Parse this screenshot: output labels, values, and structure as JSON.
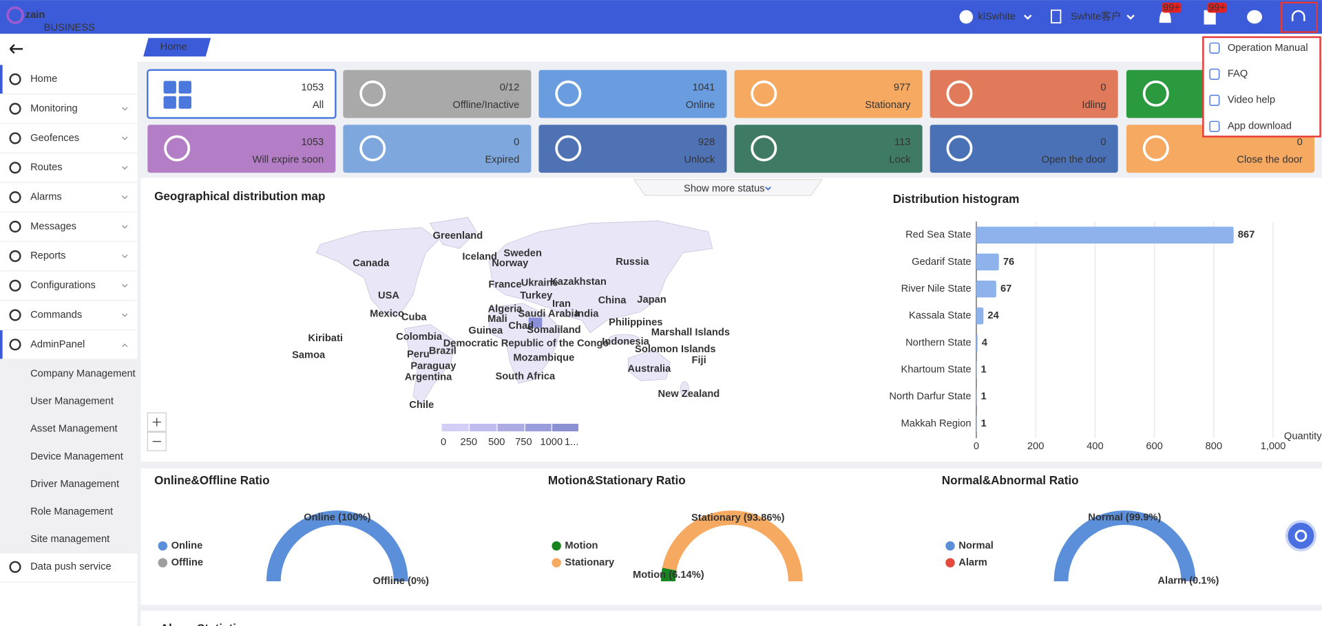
{
  "header": {
    "logo": "zain",
    "logo_sub": "BUSINESS",
    "user": "klSwhite",
    "account": "Swhite客户",
    "badges": [
      "99+",
      "99+"
    ]
  },
  "help_menu": [
    "Operation Manual",
    "FAQ",
    "Video help",
    "App download"
  ],
  "sidebar": {
    "menu": [
      "Home",
      "Monitoring",
      "Geofences",
      "Routes",
      "Alarms",
      "Messages",
      "Reports",
      "Configurations",
      "Commands",
      "AdminPanel"
    ],
    "submenu": [
      "Company Management",
      "User Management",
      "Asset Management",
      "Device Management",
      "Driver Management",
      "Role Management",
      "Site management"
    ],
    "extra": "Data push service"
  },
  "tab": "Home",
  "status_cards": [
    {
      "value": 1053,
      "label": "All",
      "color": "#ffffff"
    },
    {
      "value": "0/12",
      "label": "Offline/Inactive",
      "color": "#a9a9a9"
    },
    {
      "value": 1041,
      "label": "Online",
      "color": "#6a9ce0"
    },
    {
      "value": 977,
      "label": "Stationary",
      "color": "#f6a961"
    },
    {
      "value": 0,
      "label": "Idling",
      "color": "#e07a5b"
    },
    {
      "color": "#2b9a3e"
    },
    {
      "value": 1053,
      "label": "Will expire soon",
      "color": "#b47ec6"
    },
    {
      "value": 0,
      "label": "Expired",
      "color": "#7ea8dd"
    },
    {
      "value": 928,
      "label": "Unlock",
      "color": "#4e72b3"
    },
    {
      "value": 113,
      "label": "Lock",
      "color": "#3f7a64"
    },
    {
      "value": 0,
      "label": "Open the door",
      "color": "#4a70b6"
    },
    {
      "value": 0,
      "label": "Close the door",
      "color": "#f6a961"
    }
  ],
  "show_more": "Show more status",
  "map": {
    "title": "Geographical distribution map",
    "countries": [
      "Greenland",
      "Iceland",
      "Sweden",
      "Norway",
      "Russia",
      "Canada",
      "USA",
      "France",
      "Ukraine",
      "Kazakhstan",
      "Turkey",
      "Iran",
      "China",
      "Japan",
      "Mexico",
      "Cuba",
      "Algeria",
      "Saudi Arabia",
      "India",
      "Mali",
      "Chad",
      "Somaliland",
      "Philippines",
      "Kiribati",
      "Guinea",
      "Colombia",
      "Marshall Islands",
      "Indonesia",
      "Democratic Republic of the Congo",
      "Brazil",
      "Solomon Islands",
      "Samoa",
      "Peru",
      "Mozambique",
      "Fiji",
      "Paraguay",
      "Australia",
      "Argentina",
      "South Africa",
      "New Zealand",
      "Chile"
    ],
    "legend_labels": [
      "0",
      "250",
      "500",
      "750",
      "1000",
      "1..."
    ]
  },
  "histogram": {
    "type": "bar",
    "title": "Distribution histogram",
    "categories": [
      "Red Sea State",
      "Gedarif State",
      "River Nile State",
      "Kassala State",
      "Northern State",
      "Khartoum State",
      "North Darfur State",
      "Makkah Region"
    ],
    "values": [
      867,
      76,
      67,
      24,
      4,
      1,
      1,
      1
    ],
    "color": "#8db2ec",
    "xlim": [
      0,
      1000
    ],
    "xticks": [
      0,
      200,
      400,
      600,
      800,
      {
        "value": 1000,
        "label": "1,000"
      }
    ],
    "x_label": "Quantity",
    "grid": true
  },
  "ratio_charts": [
    {
      "type": "half-donut",
      "title": "Online&Offline Ratio",
      "series": [
        {
          "name": "Online",
          "value": 100,
          "value_label": "Online (100%)",
          "color": "#5b8fd9"
        },
        {
          "name": "Offline",
          "value": 0,
          "value_label": "Offline (0%)",
          "color": "#9e9e9e"
        }
      ]
    },
    {
      "type": "half-donut",
      "title": "Motion&Stationary Ratio",
      "series": [
        {
          "name": "Motion",
          "value": 6.14,
          "value_label": "Motion (6.14%)",
          "color": "#17841f"
        },
        {
          "name": "Stationary",
          "value": 93.86,
          "value_label": "Stationary (93.86%)",
          "color": "#f6a961"
        }
      ]
    },
    {
      "type": "half-donut",
      "title": "Normal&Abnormal Ratio",
      "series": [
        {
          "name": "Normal",
          "value": 99.9,
          "value_label": "Normal (99.9%)",
          "color": "#5b8fd9"
        },
        {
          "name": "Alarm",
          "value": 0.1,
          "value_label": "Alarm (0.1%)",
          "color": "#e5493a"
        }
      ]
    }
  ],
  "alarm_panel": {
    "title": "Alarm Statistics"
  }
}
